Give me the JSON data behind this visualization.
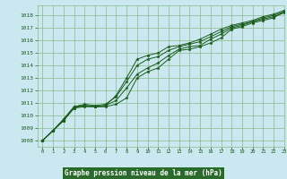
{
  "title": "Graphe pression niveau de la mer (hPa)",
  "background_color": "#cbe8f0",
  "plot_bg_color": "#cbe8f0",
  "grid_color": "#88bb88",
  "line_color": "#1a5c1a",
  "marker_color": "#1a5c1a",
  "xlabel_bg": "#2a6a2a",
  "xlabel_fg": "#ffffff",
  "xlim": [
    -0.5,
    23
  ],
  "ylim": [
    1007.5,
    1018.8
  ],
  "xticks": [
    0,
    1,
    2,
    3,
    4,
    5,
    6,
    7,
    8,
    9,
    10,
    11,
    12,
    13,
    14,
    15,
    16,
    17,
    18,
    19,
    20,
    21,
    22,
    23
  ],
  "yticks": [
    1008,
    1009,
    1010,
    1011,
    1012,
    1013,
    1014,
    1015,
    1016,
    1017,
    1018
  ],
  "series": [
    [
      1008.0,
      1008.8,
      1009.7,
      1010.7,
      1010.8,
      1010.7,
      1010.7,
      1010.9,
      1011.4,
      1013.0,
      1013.5,
      1013.8,
      1014.5,
      1015.2,
      1015.3,
      1015.5,
      1015.8,
      1016.2,
      1016.9,
      1017.1,
      1017.4,
      1017.6,
      1017.8,
      1018.3
    ],
    [
      1008.0,
      1008.8,
      1009.6,
      1010.6,
      1010.8,
      1010.7,
      1010.8,
      1011.2,
      1012.2,
      1013.3,
      1013.8,
      1014.2,
      1014.8,
      1015.3,
      1015.5,
      1015.6,
      1016.1,
      1016.5,
      1017.0,
      1017.2,
      1017.5,
      1017.7,
      1017.9,
      1018.2
    ],
    [
      1008.0,
      1008.8,
      1009.7,
      1010.7,
      1010.9,
      1010.8,
      1010.9,
      1011.5,
      1012.7,
      1014.0,
      1014.5,
      1014.7,
      1015.2,
      1015.5,
      1015.7,
      1015.9,
      1016.3,
      1016.7,
      1017.1,
      1017.3,
      1017.5,
      1017.8,
      1018.0,
      1018.3
    ],
    [
      1008.0,
      1008.8,
      1009.6,
      1010.6,
      1010.7,
      1010.7,
      1010.8,
      1011.6,
      1013.0,
      1014.5,
      1014.8,
      1015.0,
      1015.5,
      1015.6,
      1015.8,
      1016.1,
      1016.5,
      1016.9,
      1017.2,
      1017.4,
      1017.6,
      1017.9,
      1018.1,
      1018.4
    ]
  ]
}
